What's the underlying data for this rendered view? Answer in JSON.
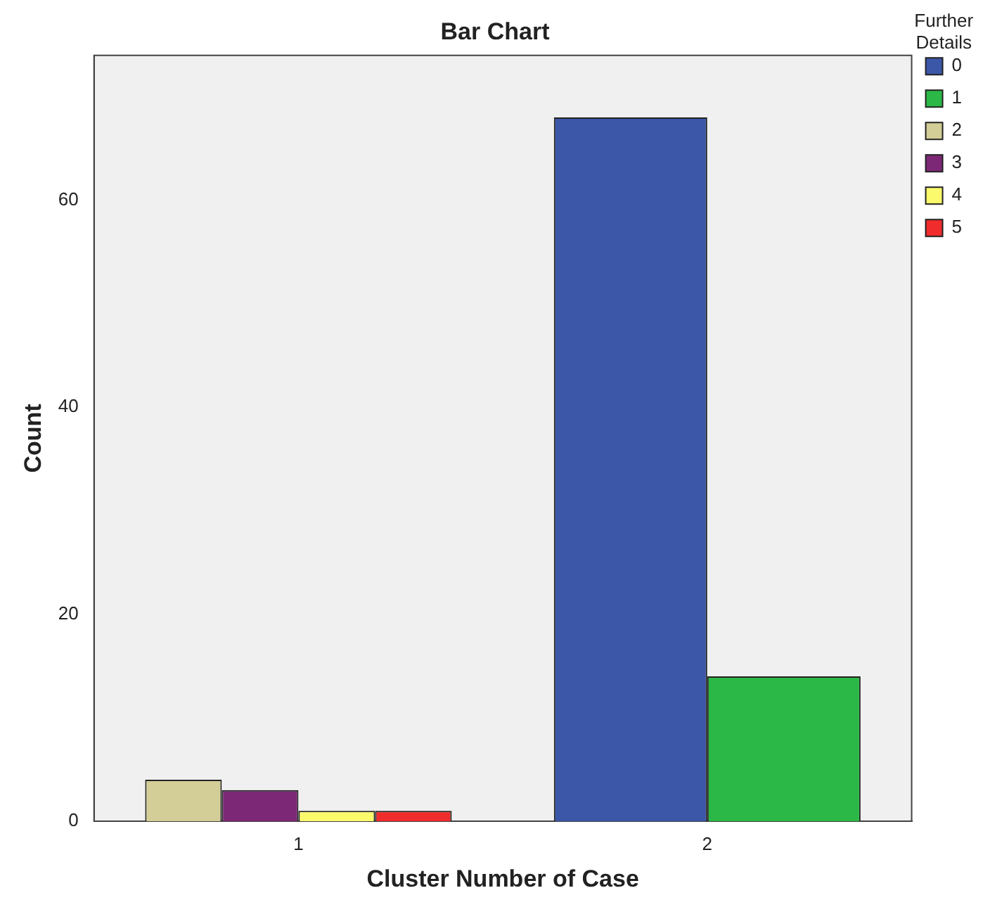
{
  "chart_data": {
    "type": "bar",
    "title": "Bar Chart",
    "xlabel": "Cluster Number of Case",
    "ylabel": "Count",
    "legend_title": "Further Details",
    "categories": [
      "1",
      "2"
    ],
    "series": [
      {
        "name": "0",
        "color": "#3c56a8",
        "values": [
          null,
          68
        ]
      },
      {
        "name": "1",
        "color": "#2cb846",
        "values": [
          null,
          14
        ]
      },
      {
        "name": "2",
        "color": "#d3ce97",
        "values": [
          4,
          null
        ]
      },
      {
        "name": "3",
        "color": "#7d2877",
        "values": [
          3,
          null
        ]
      },
      {
        "name": "4",
        "color": "#fbf96c",
        "values": [
          1,
          null
        ]
      },
      {
        "name": "5",
        "color": "#f02c2c",
        "values": [
          1,
          null
        ]
      }
    ],
    "ylim": [
      0,
      74
    ],
    "yticks": [
      0,
      20,
      40,
      60
    ],
    "grid": false,
    "legend": "right"
  }
}
